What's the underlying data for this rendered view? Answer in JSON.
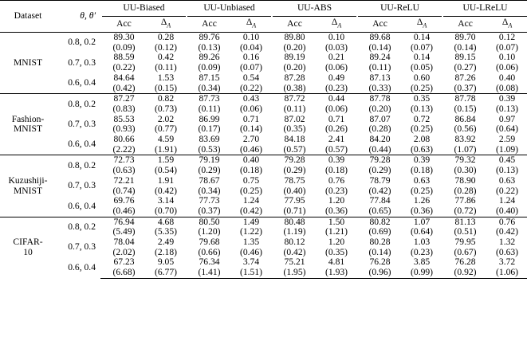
{
  "header": {
    "dataset": "Dataset",
    "theta": "θ, θ′",
    "methods": [
      "UU-Biased",
      "UU-Unbiased",
      "UU-ABS",
      "UU-ReLU",
      "UU-LReLU"
    ],
    "acc": "Acc",
    "delta": "Δ_A"
  },
  "datasets": [
    {
      "name": "MNIST",
      "rows": [
        {
          "theta": "0.8, 0.2",
          "mean": [
            [
              "89.30",
              false
            ],
            [
              "0.28",
              false
            ],
            [
              "89.76",
              true
            ],
            [
              "0.10",
              false
            ],
            [
              "89.80",
              true
            ],
            [
              "0.10",
              false
            ],
            [
              "89.68",
              true
            ],
            [
              "0.14",
              false
            ],
            [
              "89.70",
              true
            ],
            [
              "0.12",
              false
            ]
          ],
          "sd": [
            [
              "(0.09)",
              false
            ],
            [
              "(0.12)",
              false
            ],
            [
              "(0.13)",
              true
            ],
            [
              "(0.04)",
              false
            ],
            [
              "(0.20)",
              true
            ],
            [
              "(0.03)",
              false
            ],
            [
              "(0.14)",
              true
            ],
            [
              "(0.07)",
              false
            ],
            [
              "(0.14)",
              true
            ],
            [
              "(0.07)",
              false
            ]
          ]
        },
        {
          "theta": "0.7, 0.3",
          "mean": [
            [
              "88.59",
              false
            ],
            [
              "0.42",
              false
            ],
            [
              "89.26",
              true
            ],
            [
              "0.16",
              false
            ],
            [
              "89.19",
              true
            ],
            [
              "0.21",
              false
            ],
            [
              "89.24",
              true
            ],
            [
              "0.14",
              false
            ],
            [
              "89.15",
              true
            ],
            [
              "0.10",
              false
            ]
          ],
          "sd": [
            [
              "(0.22)",
              false
            ],
            [
              "(0.11)",
              false
            ],
            [
              "(0.09)",
              true
            ],
            [
              "(0.07)",
              false
            ],
            [
              "(0.20)",
              true
            ],
            [
              "(0.06)",
              false
            ],
            [
              "(0.11)",
              true
            ],
            [
              "(0.05)",
              false
            ],
            [
              "(0.27)",
              true
            ],
            [
              "(0.06)",
              false
            ]
          ]
        },
        {
          "theta": "0.6, 0.4",
          "mean": [
            [
              "84.64",
              false
            ],
            [
              "1.53",
              false
            ],
            [
              "87.15",
              true
            ],
            [
              "0.54",
              false
            ],
            [
              "87.28",
              true
            ],
            [
              "0.49",
              false
            ],
            [
              "87.13",
              true
            ],
            [
              "0.60",
              false
            ],
            [
              "87.26",
              true
            ],
            [
              "0.40",
              false
            ]
          ],
          "sd": [
            [
              "(0.42)",
              false
            ],
            [
              "(0.15)",
              false
            ],
            [
              "(0.34)",
              true
            ],
            [
              "(0.22)",
              false
            ],
            [
              "(0.38)",
              true
            ],
            [
              "(0.23)",
              false
            ],
            [
              "(0.33)",
              true
            ],
            [
              "(0.25)",
              false
            ],
            [
              "(0.37)",
              true
            ],
            [
              "(0.08)",
              false
            ]
          ]
        }
      ]
    },
    {
      "name": "Fashion-MNIST",
      "name_lines": [
        "Fashion-",
        "MNIST"
      ],
      "rows": [
        {
          "theta": "0.8, 0.2",
          "mean": [
            [
              "87.27",
              true
            ],
            [
              "0.82",
              false
            ],
            [
              "87.73",
              true
            ],
            [
              "0.43",
              false
            ],
            [
              "87.72",
              true
            ],
            [
              "0.44",
              false
            ],
            [
              "87.78",
              true
            ],
            [
              "0.35",
              false
            ],
            [
              "87.78",
              true
            ],
            [
              "0.39",
              false
            ]
          ],
          "sd": [
            [
              "(0.83)",
              true
            ],
            [
              "(0.73)",
              false
            ],
            [
              "(0.11)",
              true
            ],
            [
              "(0.06)",
              false
            ],
            [
              "(0.11)",
              true
            ],
            [
              "(0.06)",
              false
            ],
            [
              "(0.20)",
              true
            ],
            [
              "(0.13)",
              false
            ],
            [
              "(0.15)",
              true
            ],
            [
              "(0.13)",
              false
            ]
          ]
        },
        {
          "theta": "0.7, 0.3",
          "mean": [
            [
              "85.53",
              false
            ],
            [
              "2.02",
              false
            ],
            [
              "86.99",
              true
            ],
            [
              "0.71",
              false
            ],
            [
              "87.02",
              true
            ],
            [
              "0.71",
              false
            ],
            [
              "87.07",
              true
            ],
            [
              "0.72",
              false
            ],
            [
              "86.84",
              true
            ],
            [
              "0.97",
              false
            ]
          ],
          "sd": [
            [
              "(0.93)",
              false
            ],
            [
              "(0.77)",
              false
            ],
            [
              "(0.17)",
              true
            ],
            [
              "(0.14)",
              false
            ],
            [
              "(0.35)",
              true
            ],
            [
              "(0.26)",
              false
            ],
            [
              "(0.28)",
              true
            ],
            [
              "(0.25)",
              false
            ],
            [
              "(0.56)",
              true
            ],
            [
              "(0.64)",
              false
            ]
          ]
        },
        {
          "theta": "0.6, 0.4",
          "mean": [
            [
              "80.66",
              false
            ],
            [
              "4.59",
              false
            ],
            [
              "83.69",
              true
            ],
            [
              "2.70",
              false
            ],
            [
              "84.18",
              true
            ],
            [
              "2.41",
              false
            ],
            [
              "84.20",
              true
            ],
            [
              "2.08",
              false
            ],
            [
              "83.92",
              true
            ],
            [
              "2.59",
              false
            ]
          ],
          "sd": [
            [
              "(2.22)",
              false
            ],
            [
              "(1.91)",
              false
            ],
            [
              "(0.53)",
              true
            ],
            [
              "(0.46)",
              false
            ],
            [
              "(0.57)",
              true
            ],
            [
              "(0.57)",
              false
            ],
            [
              "(0.44)",
              true
            ],
            [
              "(0.63)",
              false
            ],
            [
              "(1.07)",
              true
            ],
            [
              "(1.09)",
              false
            ]
          ]
        }
      ]
    },
    {
      "name": "Kuzushiji-MNIST",
      "name_lines": [
        "Kuzushiji-",
        "MNIST"
      ],
      "rows": [
        {
          "theta": "0.8, 0.2",
          "mean": [
            [
              "72.73",
              false
            ],
            [
              "1.59",
              false
            ],
            [
              "79.19",
              true
            ],
            [
              "0.40",
              false
            ],
            [
              "79.28",
              true
            ],
            [
              "0.39",
              false
            ],
            [
              "79.28",
              true
            ],
            [
              "0.39",
              false
            ],
            [
              "79.32",
              true
            ],
            [
              "0.45",
              false
            ]
          ],
          "sd": [
            [
              "(0.63)",
              false
            ],
            [
              "(0.54)",
              false
            ],
            [
              "(0.29)",
              true
            ],
            [
              "(0.18)",
              false
            ],
            [
              "(0.29)",
              true
            ],
            [
              "(0.18)",
              false
            ],
            [
              "(0.29)",
              true
            ],
            [
              "(0.18)",
              false
            ],
            [
              "(0.30)",
              true
            ],
            [
              "(0.13)",
              false
            ]
          ]
        },
        {
          "theta": "0.7, 0.3",
          "mean": [
            [
              "72.21",
              false
            ],
            [
              "1.91",
              false
            ],
            [
              "78.67",
              true
            ],
            [
              "0.75",
              false
            ],
            [
              "78.75",
              true
            ],
            [
              "0.76",
              false
            ],
            [
              "78.79",
              true
            ],
            [
              "0.63",
              false
            ],
            [
              "78.90",
              true
            ],
            [
              "0.63",
              false
            ]
          ],
          "sd": [
            [
              "(0.74)",
              false
            ],
            [
              "(0.42)",
              false
            ],
            [
              "(0.34)",
              true
            ],
            [
              "(0.25)",
              false
            ],
            [
              "(0.40)",
              true
            ],
            [
              "(0.23)",
              false
            ],
            [
              "(0.42)",
              true
            ],
            [
              "(0.25)",
              false
            ],
            [
              "(0.28)",
              true
            ],
            [
              "(0.22)",
              false
            ]
          ]
        },
        {
          "theta": "0.6, 0.4",
          "mean": [
            [
              "69.76",
              false
            ],
            [
              "3.14",
              false
            ],
            [
              "77.73",
              true
            ],
            [
              "1.24",
              false
            ],
            [
              "77.95",
              true
            ],
            [
              "1.20",
              false
            ],
            [
              "77.84",
              true
            ],
            [
              "1.26",
              false
            ],
            [
              "77.86",
              true
            ],
            [
              "1.24",
              false
            ]
          ],
          "sd": [
            [
              "(0.46)",
              false
            ],
            [
              "(0.70)",
              false
            ],
            [
              "(0.37)",
              true
            ],
            [
              "(0.42)",
              false
            ],
            [
              "(0.71)",
              true
            ],
            [
              "(0.36)",
              false
            ],
            [
              "(0.65)",
              true
            ],
            [
              "(0.36)",
              false
            ],
            [
              "(0.72)",
              true
            ],
            [
              "(0.40)",
              false
            ]
          ]
        }
      ]
    },
    {
      "name": "CIFAR-10",
      "name_lines": [
        "CIFAR-",
        "10"
      ],
      "rows": [
        {
          "theta": "0.8, 0.2",
          "mean": [
            [
              "76.94",
              false
            ],
            [
              "4.68",
              false
            ],
            [
              "80.50",
              true
            ],
            [
              "1.49",
              false
            ],
            [
              "80.48",
              true
            ],
            [
              "1.50",
              false
            ],
            [
              "80.82",
              true
            ],
            [
              "1.07",
              false
            ],
            [
              "81.13",
              true
            ],
            [
              "0.76",
              false
            ]
          ],
          "sd": [
            [
              "(5.49)",
              false
            ],
            [
              "(5.35)",
              false
            ],
            [
              "(1.20)",
              true
            ],
            [
              "(1.22)",
              false
            ],
            [
              "(1.19)",
              true
            ],
            [
              "(1.21)",
              false
            ],
            [
              "(0.69)",
              true
            ],
            [
              "(0.64)",
              false
            ],
            [
              "(0.51)",
              true
            ],
            [
              "(0.42)",
              false
            ]
          ]
        },
        {
          "theta": "0.7, 0.3",
          "mean": [
            [
              "78.04",
              true
            ],
            [
              "2.49",
              false
            ],
            [
              "79.68",
              true
            ],
            [
              "1.35",
              false
            ],
            [
              "80.12",
              true
            ],
            [
              "1.20",
              false
            ],
            [
              "80.28",
              true
            ],
            [
              "1.03",
              false
            ],
            [
              "79.95",
              true
            ],
            [
              "1.32",
              false
            ]
          ],
          "sd": [
            [
              "(2.02)",
              true
            ],
            [
              "(2.18)",
              false
            ],
            [
              "(0.66)",
              true
            ],
            [
              "(0.46)",
              false
            ],
            [
              "(0.42)",
              true
            ],
            [
              "(0.35)",
              false
            ],
            [
              "(0.14)",
              true
            ],
            [
              "(0.23)",
              false
            ],
            [
              "(0.67)",
              true
            ],
            [
              "(0.63)",
              false
            ]
          ]
        },
        {
          "theta": "0.6, 0.4",
          "mean": [
            [
              "67.23",
              false
            ],
            [
              "9.05",
              false
            ],
            [
              "76.34",
              true
            ],
            [
              "3.74",
              false
            ],
            [
              "75.21",
              true
            ],
            [
              "4.81",
              false
            ],
            [
              "76.28",
              true
            ],
            [
              "3.85",
              false
            ],
            [
              "76.28",
              true
            ],
            [
              "3.72",
              false
            ]
          ],
          "sd": [
            [
              "(6.68)",
              false
            ],
            [
              "(6.77)",
              false
            ],
            [
              "(1.41)",
              true
            ],
            [
              "(1.51)",
              false
            ],
            [
              "(1.95)",
              true
            ],
            [
              "(1.93)",
              false
            ],
            [
              "(0.96)",
              true
            ],
            [
              "(0.99)",
              false
            ],
            [
              "(0.92)",
              true
            ],
            [
              "(1.06)",
              false
            ]
          ]
        }
      ]
    }
  ]
}
